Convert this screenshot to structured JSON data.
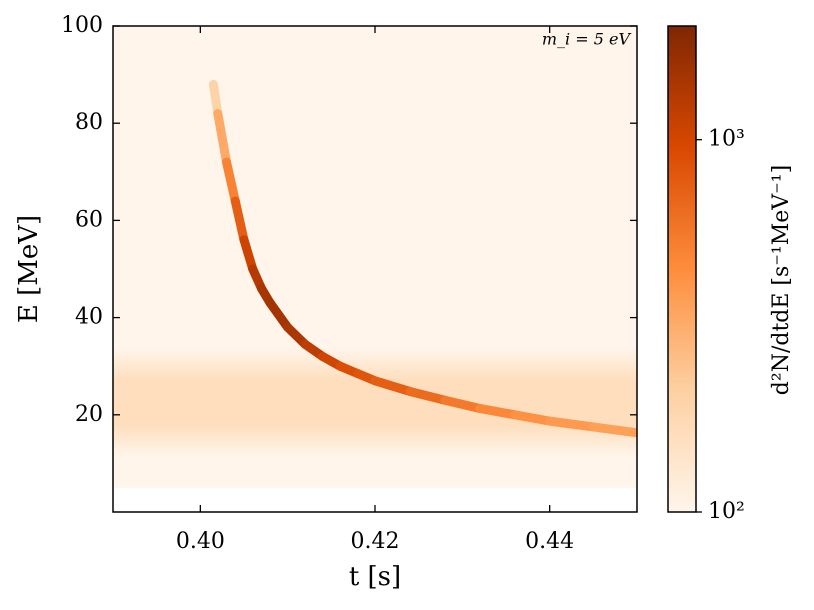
{
  "chart_data": {
    "type": "heatmap",
    "annotation": "m_i = 5 eV",
    "x_label": "t [s]",
    "y_label": "E [MeV]",
    "colorbar_label": "d²N/dtdE [s⁻¹MeV⁻¹]",
    "xlim": [
      0.39,
      0.45
    ],
    "xticks": [
      {
        "value": 0.4,
        "label": "0.40"
      },
      {
        "value": 0.42,
        "label": "0.42"
      },
      {
        "value": 0.44,
        "label": "0.44"
      }
    ],
    "ylim": [
      0,
      100
    ],
    "yticks": [
      20,
      40,
      60,
      80,
      100
    ],
    "clim": [
      100,
      2020
    ],
    "clog": true,
    "cticks": [
      {
        "value": 100,
        "label": "10²"
      },
      {
        "value": 1000,
        "label": "10³"
      }
    ],
    "colors": [
      "#fff5eb",
      "#fdd0a2",
      "#fd8d3c",
      "#d94801",
      "#7f2704"
    ],
    "background_range": [
      5,
      100
    ],
    "background_intensity": 100,
    "band_range": [
      15,
      30
    ],
    "band_intensity": 160,
    "ridge": {
      "t": [
        0.4015,
        0.402,
        0.403,
        0.404,
        0.405,
        0.406,
        0.407,
        0.408,
        0.41,
        0.412,
        0.414,
        0.416,
        0.418,
        0.42,
        0.424,
        0.428,
        0.432,
        0.436,
        0.44,
        0.445,
        0.45
      ],
      "E": [
        88,
        82,
        72,
        64,
        56,
        50,
        46,
        43,
        38,
        34.5,
        32,
        30,
        28.5,
        27,
        24.8,
        23,
        21.3,
        20,
        18.7,
        17.5,
        16.3
      ],
      "intensity": [
        150,
        250,
        400,
        600,
        900,
        1200,
        1400,
        1500,
        1500,
        1300,
        1100,
        950,
        850,
        800,
        700,
        600,
        500,
        450,
        400,
        380,
        350
      ]
    }
  }
}
